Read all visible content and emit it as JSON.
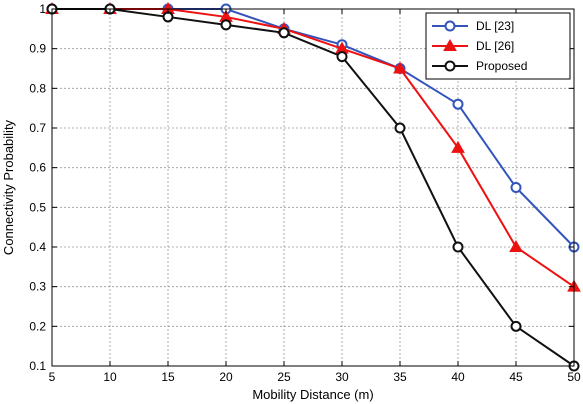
{
  "chart_data": {
    "type": "line",
    "title": "",
    "xlabel": "Mobility Distance (m)",
    "ylabel": "Connectivity Probability",
    "x": [
      5,
      10,
      15,
      20,
      25,
      30,
      35,
      40,
      45,
      50
    ],
    "xlim": [
      5,
      50
    ],
    "ylim": [
      0.1,
      1
    ],
    "xticks": [
      "5",
      "10",
      "15",
      "20",
      "25",
      "30",
      "35",
      "40",
      "45",
      "50"
    ],
    "yticks": [
      "0.1",
      "0.2",
      "0.3",
      "0.4",
      "0.5",
      "0.6",
      "0.7",
      "0.8",
      "0.9",
      "1"
    ],
    "grid": true,
    "legend_position": "top-right",
    "series": [
      {
        "name": "DL [23]",
        "color": "#3355bb",
        "marker": "circle",
        "values": [
          1,
          1,
          1,
          1,
          0.95,
          0.91,
          0.85,
          0.76,
          0.55,
          0.4
        ]
      },
      {
        "name": "DL [26]",
        "color": "#ee1111",
        "marker": "triangle",
        "values": [
          1,
          1,
          1,
          0.98,
          0.95,
          0.9,
          0.85,
          0.65,
          0.4,
          0.3
        ]
      },
      {
        "name": "Proposed",
        "color": "#111111",
        "marker": "circle",
        "values": [
          1,
          1,
          0.98,
          0.96,
          0.94,
          0.88,
          0.7,
          0.4,
          0.2,
          0.1
        ]
      }
    ]
  }
}
